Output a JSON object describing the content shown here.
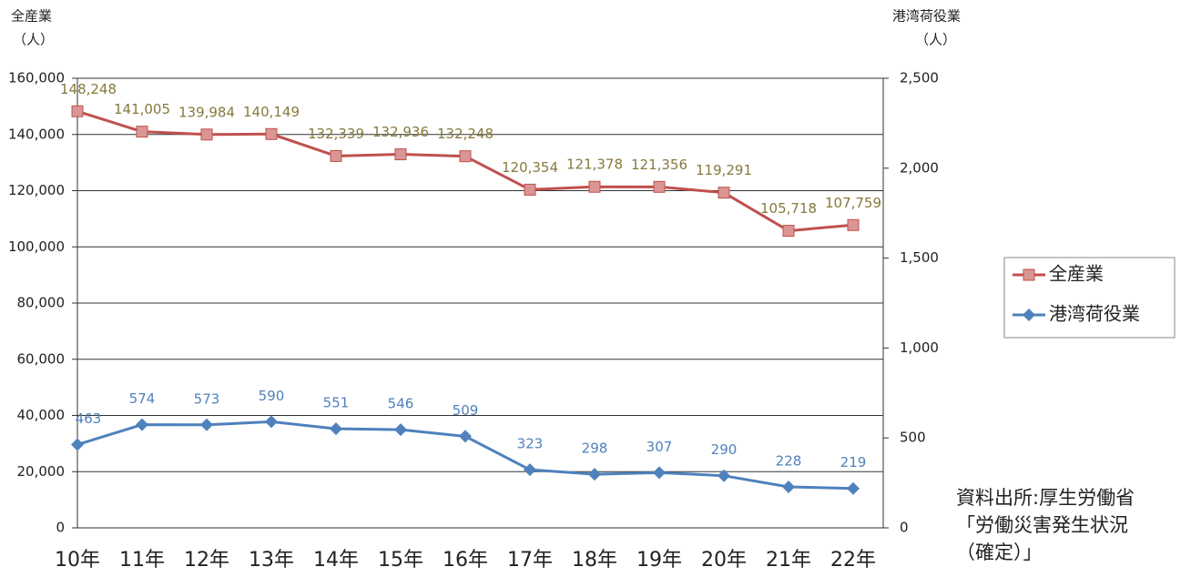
{
  "chart_data": {
    "type": "line",
    "y_label": [
      "全産業",
      "（人）"
    ],
    "y2_label": [
      "港湾荷役業",
      "（人）"
    ],
    "categories": [
      "10年",
      "11年",
      "12年",
      "13年",
      "14年",
      "15年",
      "16年",
      "17年",
      "18年",
      "19年",
      "20年",
      "21年",
      "22年"
    ],
    "series": [
      {
        "name": "全産業",
        "color": "#c0504d",
        "marker_color": "#d99694",
        "marker": "square",
        "values": [
          148248,
          141005,
          139984,
          140149,
          132339,
          132936,
          132248,
          120354,
          121378,
          121356,
          119291,
          105718,
          107759
        ],
        "value_labels": [
          "148,248",
          "141,005",
          "139,984",
          "140,149",
          "132,339",
          "132,936",
          "132,248",
          "120,354",
          "121,378",
          "121,356",
          "119,291",
          "105,718",
          "107,759"
        ],
        "label_color": "#857a3c"
      },
      {
        "name": "港湾荷役業",
        "color": "#4f81bd",
        "marker_color": "#4f81bd",
        "marker": "diamond",
        "axis": "y2",
        "values": [
          463,
          574,
          573,
          590,
          551,
          546,
          509,
          323,
          298,
          307,
          290,
          228,
          219
        ],
        "label_color": "#4f81bd"
      }
    ],
    "ylim": [
      0,
      160000
    ],
    "yticks": [
      0,
      {
        "value": 20000,
        "label": "20,000"
      },
      {
        "value": 40000,
        "label": "40,000"
      },
      {
        "value": 60000,
        "label": "60,000"
      },
      {
        "value": 80000,
        "label": "80,000"
      },
      {
        "value": 100000,
        "label": "100,000"
      },
      {
        "value": 120000,
        "label": "120,000"
      },
      {
        "value": 140000,
        "label": "140,000"
      },
      {
        "value": 160000,
        "label": "160,000"
      }
    ],
    "y2lim": [
      0,
      2500
    ],
    "y2ticks": [
      0,
      500,
      {
        "value": 1000,
        "label": "1,000"
      },
      {
        "value": 1500,
        "label": "1,500"
      },
      {
        "value": 2000,
        "label": "2,000"
      },
      {
        "value": 2500,
        "label": "2,500"
      }
    ],
    "grid": true,
    "legend": "right",
    "source": [
      "資料出所:厚生労働省",
      "「労働災害発生状況",
      "（確定）」"
    ]
  }
}
